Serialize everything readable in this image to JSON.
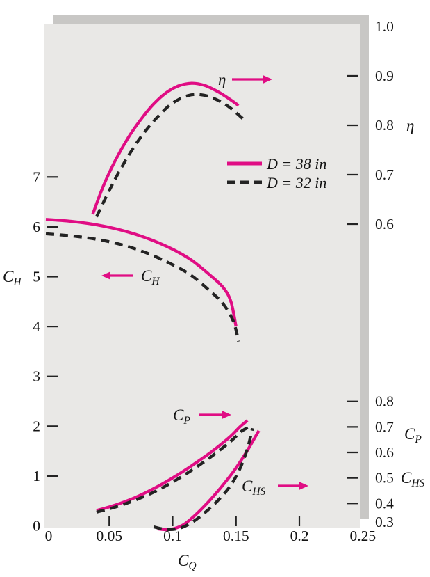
{
  "figure": {
    "background": "#ffffff",
    "panel_color": "#e9e8e6",
    "shadow_color": "#c8c7c5",
    "accent_color": "#e00d84",
    "dash_color": "#232323",
    "text_color": "#141414"
  },
  "legend": {
    "position": "upper-right-inside",
    "items": [
      {
        "label": "D = 38 in",
        "style": "solid",
        "color": "#e00d84"
      },
      {
        "label": "D = 32 in",
        "style": "dashed",
        "color": "#232323"
      }
    ]
  },
  "annotations": {
    "eta_marker": {
      "text": "η",
      "arrow": "right"
    },
    "ch_marker": {
      "main": "C",
      "sub": "H",
      "arrow": "left"
    },
    "cp_marker": {
      "main": "C",
      "sub": "P",
      "arrow": "right"
    },
    "chs_marker": {
      "main": "C",
      "sub": "HS",
      "arrow": "right"
    }
  },
  "chart_data": {
    "type": "line",
    "title": "",
    "xlabel": "C_Q",
    "grid": false,
    "x_axis": {
      "title": {
        "main": "C",
        "sub": "Q"
      },
      "range": [
        0,
        0.25
      ],
      "ticks": [
        {
          "v": 0,
          "label": "0"
        },
        {
          "v": 0.05,
          "label": "0.05"
        },
        {
          "v": 0.1,
          "label": "0.1"
        },
        {
          "v": 0.15,
          "label": "0.15"
        },
        {
          "v": 0.2,
          "label": "0.2"
        },
        {
          "v": 0.25,
          "label": "0.25"
        }
      ]
    },
    "left_axis": {
      "title": {
        "main": "C",
        "sub": "H"
      },
      "range": [
        0,
        7
      ],
      "ticks": [
        {
          "v": 7,
          "label": "7"
        },
        {
          "v": 6,
          "label": "6"
        },
        {
          "v": 5,
          "label": "5"
        },
        {
          "v": 4,
          "label": "4"
        },
        {
          "v": 3,
          "label": "3"
        },
        {
          "v": 2,
          "label": "2"
        },
        {
          "v": 1,
          "label": "1"
        },
        {
          "v": 0,
          "label": "0"
        }
      ]
    },
    "eta_axis": {
      "title": "η",
      "range": [
        0.6,
        1.0
      ],
      "ticks": [
        {
          "v": 1.0,
          "label": "1.0"
        },
        {
          "v": 0.9,
          "label": "0.9"
        },
        {
          "v": 0.8,
          "label": "0.8"
        },
        {
          "v": 0.7,
          "label": "0.7"
        },
        {
          "v": 0.6,
          "label": "0.6"
        }
      ]
    },
    "lower_axis": {
      "titles": [
        {
          "main": "C",
          "sub": "P"
        },
        {
          "main": "C",
          "sub": "HS"
        }
      ],
      "range": [
        0.3,
        0.8
      ],
      "ticks": [
        {
          "v": 0.8,
          "label": "0.8"
        },
        {
          "v": 0.7,
          "label": "0.7"
        },
        {
          "v": 0.6,
          "label": "0.6"
        },
        {
          "v": 0.5,
          "label": "0.5"
        },
        {
          "v": 0.4,
          "label": "0.4"
        },
        {
          "v": 0.3,
          "label": "0.3"
        }
      ]
    },
    "series": [
      {
        "id": "eta-38",
        "variable": "η",
        "name": "D = 38 in",
        "axis": "eta",
        "style": "solid",
        "points": [
          [
            0.037,
            0.62
          ],
          [
            0.045,
            0.675
          ],
          [
            0.055,
            0.73
          ],
          [
            0.065,
            0.775
          ],
          [
            0.075,
            0.812
          ],
          [
            0.085,
            0.843
          ],
          [
            0.095,
            0.866
          ],
          [
            0.105,
            0.88
          ],
          [
            0.115,
            0.885
          ],
          [
            0.125,
            0.881
          ],
          [
            0.135,
            0.869
          ],
          [
            0.145,
            0.853
          ],
          [
            0.152,
            0.84
          ]
        ]
      },
      {
        "id": "eta-32",
        "variable": "η",
        "name": "D = 32 in",
        "axis": "eta",
        "style": "dashed",
        "points": [
          [
            0.04,
            0.615
          ],
          [
            0.05,
            0.668
          ],
          [
            0.06,
            0.716
          ],
          [
            0.07,
            0.758
          ],
          [
            0.08,
            0.793
          ],
          [
            0.09,
            0.822
          ],
          [
            0.1,
            0.845
          ],
          [
            0.112,
            0.86
          ],
          [
            0.122,
            0.862
          ],
          [
            0.132,
            0.855
          ],
          [
            0.144,
            0.838
          ],
          [
            0.156,
            0.812
          ]
        ]
      },
      {
        "id": "ch-38",
        "variable": "C_H",
        "name": "D = 38 in",
        "axis": "left",
        "style": "solid",
        "points": [
          [
            0,
            6.15
          ],
          [
            0.02,
            6.11
          ],
          [
            0.04,
            6.04
          ],
          [
            0.06,
            5.93
          ],
          [
            0.08,
            5.77
          ],
          [
            0.1,
            5.55
          ],
          [
            0.115,
            5.33
          ],
          [
            0.13,
            5.02
          ],
          [
            0.14,
            4.78
          ],
          [
            0.146,
            4.5
          ],
          [
            0.15,
            4.0
          ]
        ]
      },
      {
        "id": "ch-32",
        "variable": "C_H",
        "name": "D = 32 in",
        "axis": "left",
        "style": "dashed",
        "points": [
          [
            0,
            5.86
          ],
          [
            0.02,
            5.82
          ],
          [
            0.04,
            5.75
          ],
          [
            0.06,
            5.64
          ],
          [
            0.08,
            5.47
          ],
          [
            0.1,
            5.24
          ],
          [
            0.115,
            5.02
          ],
          [
            0.13,
            4.7
          ],
          [
            0.14,
            4.45
          ],
          [
            0.148,
            4.1
          ],
          [
            0.152,
            3.7
          ]
        ]
      },
      {
        "id": "cp-38",
        "variable": "C_P",
        "name": "D = 38 in",
        "axis": "lower",
        "style": "solid",
        "points": [
          [
            0.04,
            0.372
          ],
          [
            0.055,
            0.394
          ],
          [
            0.07,
            0.422
          ],
          [
            0.085,
            0.458
          ],
          [
            0.1,
            0.5
          ],
          [
            0.115,
            0.548
          ],
          [
            0.13,
            0.6
          ],
          [
            0.145,
            0.66
          ],
          [
            0.153,
            0.7
          ],
          [
            0.159,
            0.725
          ]
        ]
      },
      {
        "id": "cp-32",
        "variable": "C_P",
        "name": "D = 32 in",
        "axis": "lower",
        "style": "dashed",
        "points": [
          [
            0.04,
            0.366
          ],
          [
            0.055,
            0.386
          ],
          [
            0.07,
            0.412
          ],
          [
            0.085,
            0.444
          ],
          [
            0.1,
            0.484
          ],
          [
            0.115,
            0.53
          ],
          [
            0.13,
            0.582
          ],
          [
            0.145,
            0.64
          ],
          [
            0.155,
            0.685
          ],
          [
            0.163,
            0.705
          ]
        ]
      },
      {
        "id": "chs-38",
        "variable": "C_HS",
        "name": "D = 38 in",
        "axis": "lower",
        "style": "solid",
        "points": [
          [
            0.088,
            0.3
          ],
          [
            0.098,
            0.298
          ],
          [
            0.108,
            0.315
          ],
          [
            0.118,
            0.355
          ],
          [
            0.128,
            0.405
          ],
          [
            0.138,
            0.462
          ],
          [
            0.148,
            0.525
          ],
          [
            0.158,
            0.6
          ],
          [
            0.168,
            0.685
          ]
        ]
      },
      {
        "id": "chs-32",
        "variable": "C_HS",
        "name": "D = 32 in",
        "axis": "lower",
        "style": "dashed",
        "points": [
          [
            0.085,
            0.308
          ],
          [
            0.095,
            0.298
          ],
          [
            0.105,
            0.302
          ],
          [
            0.115,
            0.325
          ],
          [
            0.125,
            0.362
          ],
          [
            0.135,
            0.408
          ],
          [
            0.145,
            0.465
          ],
          [
            0.153,
            0.535
          ],
          [
            0.159,
            0.615
          ],
          [
            0.163,
            0.695
          ]
        ]
      }
    ]
  }
}
